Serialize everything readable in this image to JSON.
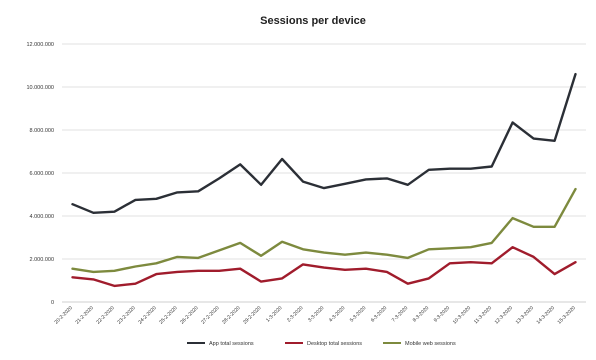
{
  "chart_data": {
    "type": "line",
    "title": "Sessions per device",
    "xlabel": "",
    "ylabel": "",
    "ylim": [
      0,
      12000000
    ],
    "y_ticks": [
      0,
      2000000,
      4000000,
      6000000,
      8000000,
      10000000,
      12000000
    ],
    "y_tick_labels": [
      "0",
      "2.000.000",
      "4.000.000",
      "6.000.000",
      "8.000.000",
      "10.000.000",
      "12.000.000"
    ],
    "grid": true,
    "legend_position": "bottom",
    "categories": [
      "20-2-2020",
      "21-2-2020",
      "22-2-2020",
      "23-2-2020",
      "24-2-2020",
      "25-2-2020",
      "26-2-2020",
      "27-2-2020",
      "28-2-2020",
      "29-2-2020",
      "1-3-2020",
      "2-3-2020",
      "3-3-2020",
      "4-3-2020",
      "5-3-2020",
      "6-3-2020",
      "7-3-2020",
      "8-3-2020",
      "9-3-2020",
      "10-3-2020",
      "11-3-2020",
      "12-3-2020",
      "13-3-2020",
      "14-3-2020",
      "15-3-2020"
    ],
    "series": [
      {
        "name": "App total sessions",
        "color": "#2b2f36",
        "values": [
          4550000,
          4150000,
          4200000,
          4750000,
          4800000,
          5100000,
          5150000,
          5750000,
          6400000,
          5450000,
          6650000,
          5600000,
          5300000,
          5500000,
          5700000,
          5750000,
          5450000,
          6150000,
          6200000,
          6200000,
          6300000,
          8350000,
          7600000,
          7500000,
          10600000
        ]
      },
      {
        "name": "Desktop total sessions",
        "color": "#a01c2c",
        "values": [
          1150000,
          1050000,
          750000,
          850000,
          1300000,
          1400000,
          1450000,
          1450000,
          1550000,
          950000,
          1100000,
          1750000,
          1600000,
          1500000,
          1550000,
          1400000,
          850000,
          1100000,
          1800000,
          1850000,
          1800000,
          2550000,
          2100000,
          1300000,
          1850000
        ]
      },
      {
        "name": "Mobile web sessions",
        "color": "#7d8a3e",
        "values": [
          1550000,
          1400000,
          1450000,
          1650000,
          1800000,
          2100000,
          2050000,
          2400000,
          2750000,
          2150000,
          2800000,
          2450000,
          2300000,
          2200000,
          2300000,
          2200000,
          2050000,
          2450000,
          2500000,
          2550000,
          2750000,
          3900000,
          3500000,
          3500000,
          5250000
        ]
      }
    ]
  }
}
